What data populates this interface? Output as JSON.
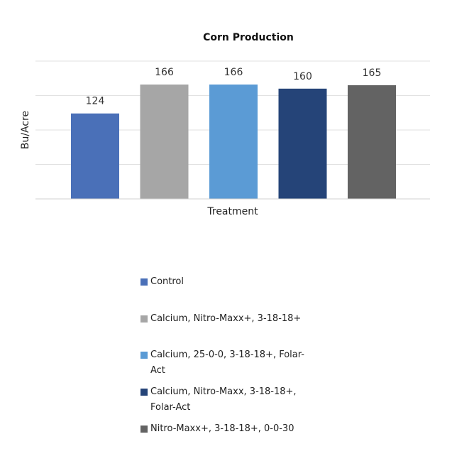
{
  "chart_data": {
    "type": "bar",
    "title": "Corn Production",
    "xlabel": "Treatment",
    "ylabel": "Bu/Acre",
    "ylim": [
      0,
      200
    ],
    "grid": true,
    "legend_position": "bottom",
    "categories": [
      "Control",
      "Calcium, Nitro-Maxx+, 3-18-18+",
      "Calcium, 25-0-0, 3-18-18+, Folar-Act",
      "Calcium, Nitro-Maxx, 3-18-18+, Folar-Act",
      "Nitro-Maxx+, 3-18-18+, 0-0-30"
    ],
    "values": [
      124,
      166,
      166,
      160,
      165
    ],
    "colors": [
      "#4a70b8",
      "#a6a6a6",
      "#5b9bd5",
      "#254478",
      "#636363"
    ]
  }
}
